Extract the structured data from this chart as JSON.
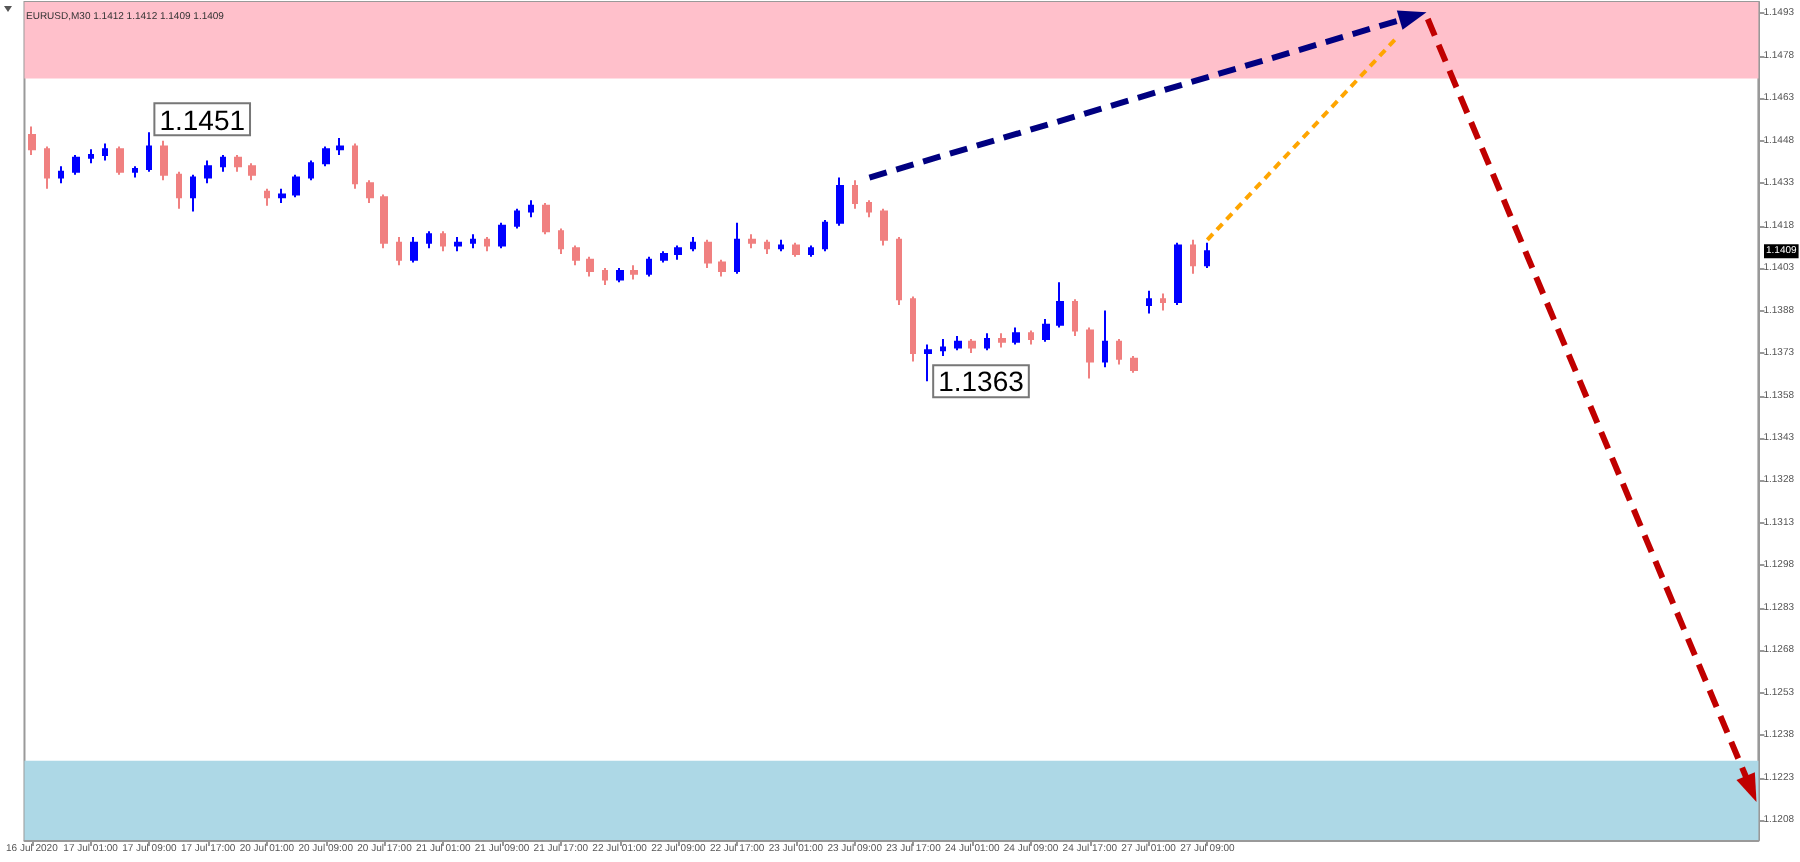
{
  "chart_data": {
    "type": "candlestick",
    "title": "EURUSD,M30 1.1412 1.1412 1.1409 1.1409",
    "categories": [
      "16 Jul 2020",
      null,
      null,
      null,
      "17 Jul 01:00",
      null,
      null,
      null,
      "17 Jul 09:00",
      null,
      null,
      null,
      "17 Jul 17:00",
      null,
      null,
      null,
      "20 Jul 01:00",
      null,
      null,
      null,
      "20 Jul 09:00",
      null,
      null,
      null,
      "20 Jul 17:00",
      null,
      null,
      null,
      "21 Jul 01:00",
      null,
      null,
      null,
      "21 Jul 09:00",
      null,
      null,
      null,
      "21 Jul 17:00",
      null,
      null,
      null,
      "22 Jul 01:00",
      null,
      null,
      null,
      "22 Jul 09:00",
      null,
      null,
      null,
      "22 Jul 17:00",
      null,
      null,
      null,
      "23 Jul 01:00",
      null,
      null,
      null,
      "23 Jul 09:00",
      null,
      null,
      null,
      "23 Jul 17:00",
      null,
      null,
      null,
      "24 Jul 01:00",
      null,
      null,
      null,
      "24 Jul 09:00",
      null,
      null,
      null,
      "24 Jul 17:00",
      null,
      null,
      null,
      "27 Jul 01:00",
      null,
      null,
      null,
      "27 Jul 09:00",
      null,
      null,
      null,
      null,
      null,
      null,
      null,
      null,
      null,
      null,
      null,
      null,
      null,
      null,
      null,
      null,
      null,
      null,
      null,
      null,
      null,
      null,
      null,
      null,
      null,
      null,
      null,
      null,
      null,
      null,
      null,
      null,
      null,
      null,
      null,
      null,
      null
    ],
    "ohlc": [
      [
        1.145,
        1.1453,
        1.1443,
        1.1445
      ],
      [
        1.1445,
        1.1446,
        1.1431,
        1.1435
      ],
      [
        1.1435,
        1.1439,
        1.1433,
        1.1437
      ],
      [
        1.1437,
        1.1443,
        1.1436,
        1.1442
      ],
      [
        1.1442,
        1.1445,
        1.144,
        1.1443
      ],
      [
        1.1443,
        1.1447,
        1.1441,
        1.1445
      ],
      [
        1.1445,
        1.1446,
        1.1436,
        1.1437
      ],
      [
        1.1437,
        1.1439,
        1.1435,
        1.1438
      ],
      [
        1.1438,
        1.1451,
        1.1437,
        1.1446
      ],
      [
        1.1446,
        1.1448,
        1.1434,
        1.1436
      ],
      [
        1.1436,
        1.1437,
        1.1424,
        1.1428
      ],
      [
        1.1428,
        1.1436,
        1.1423,
        1.1435
      ],
      [
        1.1435,
        1.1441,
        1.1433,
        1.1439
      ],
      [
        1.1439,
        1.1443,
        1.1437,
        1.1442
      ],
      [
        1.1442,
        1.1443,
        1.1437,
        1.1439
      ],
      [
        1.1439,
        1.144,
        1.1434,
        1.1436
      ],
      [
        1.143,
        1.1431,
        1.1425,
        1.1428
      ],
      [
        1.1428,
        1.1431,
        1.1426,
        1.1429
      ],
      [
        1.1429,
        1.1436,
        1.1428,
        1.1435
      ],
      [
        1.1435,
        1.1441,
        1.1434,
        1.144
      ],
      [
        1.144,
        1.1446,
        1.1439,
        1.1445
      ],
      [
        1.1445,
        1.1449,
        1.1443,
        1.1446
      ],
      [
        1.1446,
        1.1447,
        1.1431,
        1.1433
      ],
      [
        1.1433,
        1.1434,
        1.1426,
        1.1428
      ],
      [
        1.1428,
        1.1429,
        1.141,
        1.1412
      ],
      [
        1.1412,
        1.1414,
        1.1404,
        1.1406
      ],
      [
        1.1406,
        1.1414,
        1.1405,
        1.1412
      ],
      [
        1.1412,
        1.1416,
        1.141,
        1.1415
      ],
      [
        1.1415,
        1.1416,
        1.1409,
        1.1411
      ],
      [
        1.1411,
        1.1414,
        1.1409,
        1.1412
      ],
      [
        1.1412,
        1.1415,
        1.141,
        1.1413
      ],
      [
        1.1413,
        1.1414,
        1.1409,
        1.1411
      ],
      [
        1.1411,
        1.1419,
        1.141,
        1.1418
      ],
      [
        1.1418,
        1.1424,
        1.1417,
        1.1423
      ],
      [
        1.1423,
        1.1427,
        1.1421,
        1.1425
      ],
      [
        1.1425,
        1.1426,
        1.1415,
        1.1416
      ],
      [
        1.1416,
        1.1417,
        1.1408,
        1.141
      ],
      [
        1.141,
        1.1411,
        1.1404,
        1.1406
      ],
      [
        1.1406,
        1.1407,
        1.14,
        1.1402
      ],
      [
        1.1402,
        1.1403,
        1.1397,
        1.1399
      ],
      [
        1.1399,
        1.1403,
        1.1398,
        1.1402
      ],
      [
        1.1402,
        1.1404,
        1.1399,
        1.1401
      ],
      [
        1.1401,
        1.1407,
        1.14,
        1.1406
      ],
      [
        1.1406,
        1.1409,
        1.1405,
        1.1408
      ],
      [
        1.1408,
        1.1411,
        1.1406,
        1.141
      ],
      [
        1.141,
        1.1414,
        1.1409,
        1.1412
      ],
      [
        1.1412,
        1.1413,
        1.1403,
        1.1405
      ],
      [
        1.1405,
        1.1406,
        1.14,
        1.1402
      ],
      [
        1.1402,
        1.1419,
        1.1401,
        1.1413
      ],
      [
        1.1413,
        1.1415,
        1.141,
        1.1412
      ],
      [
        1.1412,
        1.1413,
        1.1408,
        1.141
      ],
      [
        1.141,
        1.1413,
        1.1409,
        1.1411
      ],
      [
        1.1411,
        1.1412,
        1.1407,
        1.1408
      ],
      [
        1.1408,
        1.1411,
        1.1407,
        1.141
      ],
      [
        1.141,
        1.142,
        1.1409,
        1.1419
      ],
      [
        1.1419,
        1.1435,
        1.1418,
        1.1432
      ],
      [
        1.1432,
        1.1434,
        1.1424,
        1.1426
      ],
      [
        1.1426,
        1.1427,
        1.1421,
        1.1423
      ],
      [
        1.1423,
        1.1424,
        1.1411,
        1.1413
      ],
      [
        1.1413,
        1.1414,
        1.139,
        1.1392
      ],
      [
        1.1392,
        1.1393,
        1.137,
        1.1373
      ],
      [
        1.1373,
        1.1376,
        1.1363,
        1.1374
      ],
      [
        1.1374,
        1.1378,
        1.1372,
        1.1375
      ],
      [
        1.1375,
        1.1379,
        1.1374,
        1.1377
      ],
      [
        1.1377,
        1.1378,
        1.1373,
        1.1375
      ],
      [
        1.1375,
        1.138,
        1.1374,
        1.1378
      ],
      [
        1.1378,
        1.138,
        1.1375,
        1.1377
      ],
      [
        1.1377,
        1.1382,
        1.1376,
        1.138
      ],
      [
        1.138,
        1.1381,
        1.1376,
        1.1378
      ],
      [
        1.1378,
        1.1385,
        1.1377,
        1.1383
      ],
      [
        1.1383,
        1.1398,
        1.1382,
        1.1391
      ],
      [
        1.1391,
        1.1392,
        1.1379,
        1.1381
      ],
      [
        1.1381,
        1.1382,
        1.1364,
        1.137
      ],
      [
        1.137,
        1.1388,
        1.1368,
        1.1377
      ],
      [
        1.1377,
        1.1378,
        1.1369,
        1.1371
      ],
      [
        1.1371,
        1.1372,
        1.1366,
        1.1367
      ],
      [
        1.139,
        1.1395,
        1.1387,
        1.1392
      ],
      [
        1.1392,
        1.1394,
        1.1388,
        1.1391
      ],
      [
        1.1391,
        1.1412,
        1.139,
        1.1411
      ],
      [
        1.1411,
        1.1413,
        1.1401,
        1.1404
      ],
      [
        1.1404,
        1.1412,
        1.1403,
        1.1409
      ],
      null,
      null,
      null,
      null,
      null,
      null,
      null,
      null,
      null,
      null,
      null,
      null,
      null,
      null,
      null,
      null,
      null,
      null,
      null,
      null,
      null,
      null,
      null,
      null,
      null,
      null,
      null,
      null,
      null,
      null,
      null,
      null,
      null,
      null,
      null,
      null,
      null
    ],
    "colors": [
      "#f08080",
      "#f08080",
      "#0000ff",
      "#0000ff",
      "#0000ff",
      "#0000ff",
      "#f08080",
      "#0000ff",
      "#0000ff",
      "#f08080",
      "#f08080",
      "#0000ff",
      "#0000ff",
      "#0000ff",
      "#f08080",
      "#f08080",
      "#f08080",
      "#0000ff",
      "#0000ff",
      "#0000ff",
      "#0000ff",
      "#0000ff",
      "#f08080",
      "#f08080",
      "#f08080",
      "#f08080",
      "#0000ff",
      "#0000ff",
      "#f08080",
      "#0000ff",
      "#0000ff",
      "#f08080",
      "#0000ff",
      "#0000ff",
      "#0000ff",
      "#f08080",
      "#f08080",
      "#f08080",
      "#f08080",
      "#f08080",
      "#0000ff",
      "#f08080",
      "#0000ff",
      "#0000ff",
      "#0000ff",
      "#0000ff",
      "#f08080",
      "#f08080",
      "#0000ff",
      "#f08080",
      "#f08080",
      "#0000ff",
      "#f08080",
      "#0000ff",
      "#0000ff",
      "#0000ff",
      "#f08080",
      "#f08080",
      "#f08080",
      "#f08080",
      "#f08080",
      "#0000ff",
      "#0000ff",
      "#0000ff",
      "#f08080",
      "#0000ff",
      "#f08080",
      "#0000ff",
      "#f08080",
      "#0000ff",
      "#0000ff",
      "#f08080",
      "#f08080",
      "#0000ff",
      "#f08080",
      "#f08080",
      "#0000ff",
      "#f08080",
      "#0000ff",
      "#f08080",
      "#0000ff",
      null,
      null,
      null,
      null,
      null,
      null,
      null,
      null,
      null,
      null,
      null,
      null,
      null,
      null,
      null,
      null,
      null,
      null,
      null,
      null,
      null,
      null,
      null,
      null,
      null,
      null,
      null,
      null,
      null,
      null,
      null,
      null,
      null,
      null,
      null,
      null,
      null
    ],
    "value_labels": [
      null,
      null,
      null,
      null,
      null,
      null,
      null,
      null,
      "1.1451",
      null,
      null,
      null,
      null,
      null,
      null,
      null,
      null,
      null,
      null,
      null,
      null,
      null,
      null,
      null,
      null,
      null,
      null,
      null,
      null,
      null,
      null,
      null,
      null,
      null,
      null,
      null,
      null,
      null,
      null,
      null,
      null,
      null,
      null,
      null,
      null,
      null,
      null,
      null,
      null,
      null,
      null,
      null,
      null,
      null,
      null,
      null,
      null,
      null,
      null,
      null,
      null,
      "1.1363",
      null,
      null,
      null,
      null,
      null,
      null,
      null,
      null,
      null,
      null,
      null,
      null,
      null,
      null,
      null,
      null,
      null,
      null,
      null,
      null,
      null,
      null,
      null,
      null,
      null,
      null,
      null,
      null,
      null,
      null,
      null,
      null,
      null,
      null,
      null,
      null,
      null,
      null,
      null,
      null,
      null,
      null,
      null,
      null,
      null,
      null,
      null,
      null,
      null,
      null,
      null,
      null,
      null,
      null,
      null,
      null
    ],
    "series": [
      {
        "type": "line",
        "color": "#000080",
        "line_style": "dashed",
        "values": [
          null,
          null,
          null,
          null,
          null,
          null,
          null,
          null,
          null,
          null,
          null,
          null,
          null,
          null,
          null,
          null,
          null,
          null,
          null,
          null,
          null,
          null,
          null,
          null,
          null,
          null,
          null,
          null,
          null,
          null,
          null,
          null,
          null,
          null,
          null,
          null,
          null,
          null,
          null,
          null,
          null,
          null,
          null,
          null,
          null,
          null,
          null,
          null,
          null,
          null,
          null,
          null,
          null,
          null,
          null,
          null,
          null,
          1.1435,
          null,
          null,
          null,
          null,
          null,
          null,
          null,
          null,
          null,
          null,
          null,
          null,
          null,
          null,
          null,
          null,
          null,
          null,
          null,
          null,
          null,
          null,
          null,
          null,
          null,
          null,
          null,
          null,
          null,
          null,
          null,
          null,
          null,
          null,
          null,
          null,
          1.1492,
          null,
          null,
          null,
          null,
          null,
          null,
          null,
          null,
          null,
          null,
          null,
          null,
          null,
          null,
          null,
          null,
          null,
          null,
          null,
          null,
          null,
          null,
          null
        ]
      },
      {
        "type": "line",
        "color": "#ffa500",
        "line_style": "dotted",
        "values": [
          null,
          null,
          null,
          null,
          null,
          null,
          null,
          null,
          null,
          null,
          null,
          null,
          null,
          null,
          null,
          null,
          null,
          null,
          null,
          null,
          null,
          null,
          null,
          null,
          null,
          null,
          null,
          null,
          null,
          null,
          null,
          null,
          null,
          null,
          null,
          null,
          null,
          null,
          null,
          null,
          null,
          null,
          null,
          null,
          null,
          null,
          null,
          null,
          null,
          null,
          null,
          null,
          null,
          null,
          null,
          null,
          null,
          null,
          null,
          null,
          null,
          null,
          null,
          null,
          null,
          null,
          null,
          null,
          null,
          null,
          null,
          null,
          null,
          null,
          null,
          null,
          null,
          null,
          null,
          null,
          1.1413,
          null,
          null,
          null,
          null,
          null,
          null,
          null,
          null,
          null,
          null,
          null,
          null,
          1.1485,
          null,
          null,
          null,
          null,
          null,
          null,
          null,
          null,
          null,
          null,
          null,
          null,
          null,
          null,
          null,
          null,
          null,
          null,
          null,
          null,
          null,
          null,
          null,
          null
        ]
      },
      {
        "type": "line",
        "color": "#c00000",
        "line_style": "dashed",
        "values": [
          null,
          null,
          null,
          null,
          null,
          null,
          null,
          null,
          null,
          null,
          null,
          null,
          null,
          null,
          null,
          null,
          null,
          null,
          null,
          null,
          null,
          null,
          null,
          null,
          null,
          null,
          null,
          null,
          null,
          null,
          null,
          null,
          null,
          null,
          null,
          null,
          null,
          null,
          null,
          null,
          null,
          null,
          null,
          null,
          null,
          null,
          null,
          null,
          null,
          null,
          null,
          null,
          null,
          null,
          null,
          null,
          null,
          null,
          null,
          null,
          null,
          null,
          null,
          null,
          null,
          null,
          null,
          null,
          null,
          null,
          null,
          null,
          null,
          null,
          null,
          null,
          null,
          null,
          null,
          null,
          null,
          null,
          null,
          null,
          null,
          null,
          null,
          null,
          null,
          null,
          null,
          null,
          null,
          null,
          null,
          1.1491,
          null,
          null,
          null,
          null,
          null,
          null,
          null,
          null,
          null,
          null,
          null,
          null,
          null,
          null,
          null,
          null,
          null,
          null,
          null,
          null,
          null,
          1.1219
        ]
      }
    ],
    "ylim": [
      1.1201,
      1.1497
    ],
    "yticks": [
      1.1208,
      1.1223,
      1.1238,
      1.1253,
      1.1268,
      1.1283,
      1.1298,
      1.1313,
      1.1328,
      1.1343,
      1.1358,
      1.1373,
      1.1388,
      1.1403,
      1.1418,
      1.1433,
      1.1448,
      1.1463,
      1.1478,
      1.1493
    ],
    "bands": [
      {
        "axis": "y",
        "from": 1.147,
        "to": 1.1497,
        "color": "#ffc0cb"
      },
      {
        "axis": "y",
        "from": 1.1201,
        "to": 1.1229,
        "color": "#add8e6"
      }
    ],
    "annotations": [
      {
        "text": "1.1409",
        "y": 1.1409
      }
    ]
  }
}
